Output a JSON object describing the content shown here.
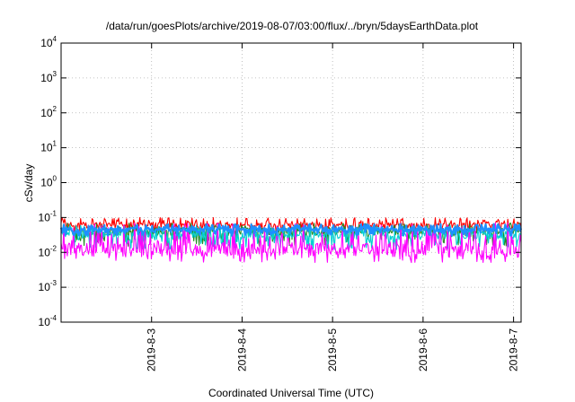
{
  "chart_data": {
    "type": "line",
    "title": "/data/run/goesPlots/archive/2019-08-07/03:00/flux/../bryn/5daysEarthData.plot",
    "xlabel": "Coordinated Universal Time (UTC)",
    "ylabel": "cSv/day",
    "yscale": "log",
    "ylim": [
      0.0001,
      10000
    ],
    "xlim": [
      "2019-08-02T00:00",
      "2019-08-07T02:00"
    ],
    "grid": true,
    "y_ticks": [
      {
        "base": "10",
        "exp": "-4",
        "value": 0.0001
      },
      {
        "base": "10",
        "exp": "-3",
        "value": 0.001
      },
      {
        "base": "10",
        "exp": "-2",
        "value": 0.01
      },
      {
        "base": "10",
        "exp": "-1",
        "value": 0.1
      },
      {
        "base": "10",
        "exp": "0",
        "value": 1
      },
      {
        "base": "10",
        "exp": "1",
        "value": 10
      },
      {
        "base": "10",
        "exp": "2",
        "value": 100
      },
      {
        "base": "10",
        "exp": "3",
        "value": 1000
      },
      {
        "base": "10",
        "exp": "4",
        "value": 10000
      }
    ],
    "x_ticks": [
      {
        "label": "2019-8-3",
        "value": "2019-08-03T00:00"
      },
      {
        "label": "2019-8-4",
        "value": "2019-08-04T00:00"
      },
      {
        "label": "2019-8-5",
        "value": "2019-08-05T00:00"
      },
      {
        "label": "2019-8-6",
        "value": "2019-08-06T00:00"
      },
      {
        "label": "2019-8-7",
        "value": "2019-08-07T00:00"
      }
    ],
    "series": [
      {
        "color": "#ff0000",
        "typical": 0.06,
        "min": 0.035,
        "max": 0.1
      },
      {
        "color": "#228b22",
        "typical": 0.04,
        "min": 0.015,
        "max": 0.07
      },
      {
        "color": "#00ced1",
        "typical": 0.03,
        "min": 0.012,
        "max": 0.06
      },
      {
        "color": "#1e90ff",
        "typical": 0.045,
        "min": 0.03,
        "max": 0.065
      },
      {
        "color": "#ff00ff",
        "typical": 0.012,
        "min": 0.005,
        "max": 0.07
      }
    ]
  }
}
